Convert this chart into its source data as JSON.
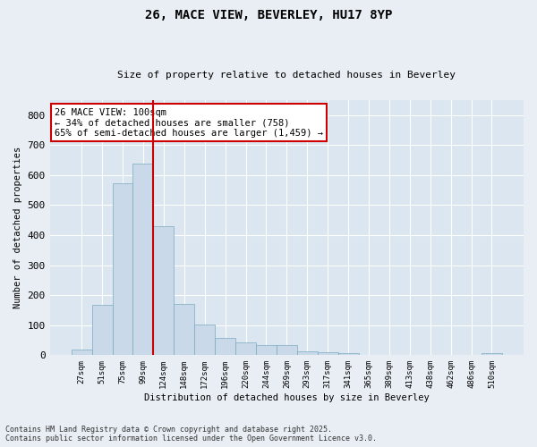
{
  "title": "26, MACE VIEW, BEVERLEY, HU17 8YP",
  "subtitle": "Size of property relative to detached houses in Beverley",
  "xlabel": "Distribution of detached houses by size in Beverley",
  "ylabel": "Number of detached properties",
  "bar_color": "#c9d9ea",
  "bar_edge_color": "#7aaabf",
  "fig_bg_color": "#e8eef4",
  "ax_bg_color": "#dce6f0",
  "grid_color": "#ffffff",
  "categories": [
    "27sqm",
    "51sqm",
    "75sqm",
    "99sqm",
    "124sqm",
    "148sqm",
    "172sqm",
    "196sqm",
    "220sqm",
    "244sqm",
    "269sqm",
    "293sqm",
    "317sqm",
    "341sqm",
    "365sqm",
    "389sqm",
    "413sqm",
    "438sqm",
    "462sqm",
    "486sqm",
    "510sqm"
  ],
  "values": [
    18,
    167,
    572,
    638,
    430,
    170,
    103,
    57,
    44,
    33,
    33,
    14,
    10,
    6,
    0,
    0,
    0,
    0,
    0,
    0,
    7
  ],
  "ylim": [
    0,
    850
  ],
  "yticks": [
    0,
    100,
    200,
    300,
    400,
    500,
    600,
    700,
    800
  ],
  "vline_index": 3,
  "vline_color": "#cc0000",
  "annotation_text": "26 MACE VIEW: 100sqm\n← 34% of detached houses are smaller (758)\n65% of semi-detached houses are larger (1,459) →",
  "annotation_box_color": "#ffffff",
  "annotation_box_edge": "#cc0000",
  "footer_text": "Contains HM Land Registry data © Crown copyright and database right 2025.\nContains public sector information licensed under the Open Government Licence v3.0."
}
